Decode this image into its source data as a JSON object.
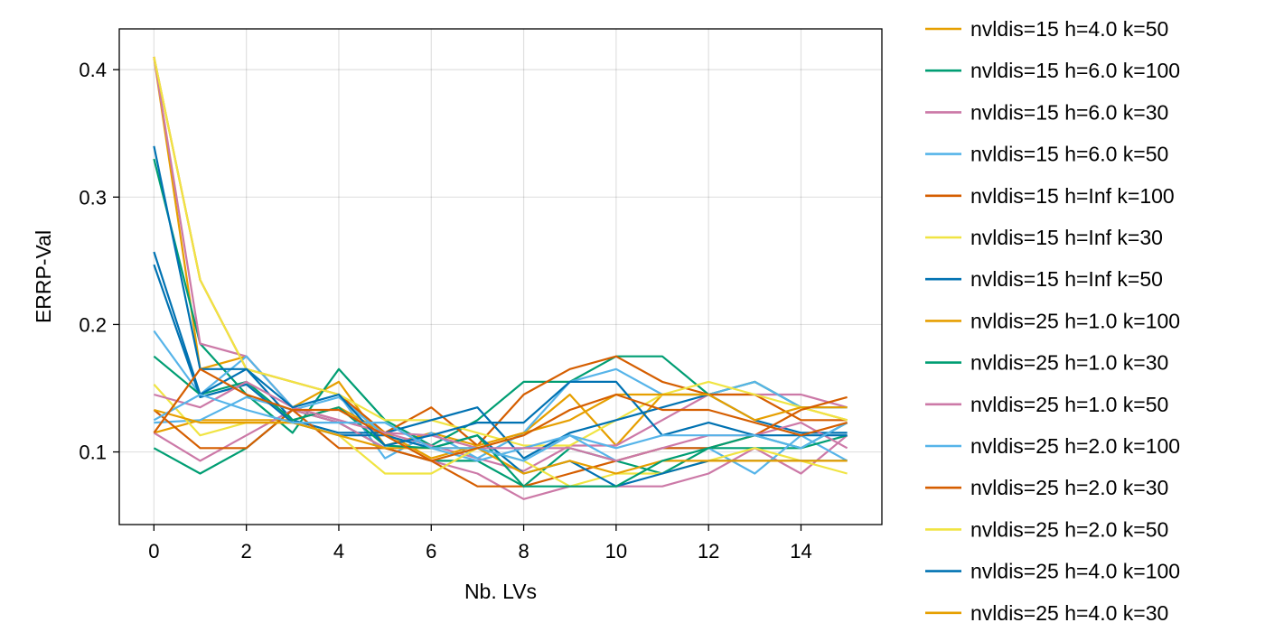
{
  "chart_data": {
    "type": "line",
    "title": "",
    "xlabel": "Nb. LVs",
    "ylabel": "ERRP-Val",
    "x": [
      0,
      1,
      2,
      3,
      4,
      5,
      6,
      7,
      8,
      9,
      10,
      11,
      12,
      13,
      14,
      15
    ],
    "xlim": [
      -0.75,
      15.75
    ],
    "ylim": [
      0.043,
      0.432
    ],
    "xticks": [
      0,
      2,
      4,
      6,
      8,
      10,
      12,
      14
    ],
    "yticks": [
      0.1,
      0.2,
      0.3,
      0.4
    ],
    "ytick_labels": [
      "0.1",
      "0.2",
      "0.3",
      "0.4"
    ],
    "grid": true,
    "legend_position": "outside-right",
    "series": [
      {
        "name": "nvldis=15 h=4.0 k=50",
        "color": "#E69F00",
        "values": [
          0.41,
          0.165,
          0.175,
          0.135,
          0.155,
          0.105,
          0.115,
          0.105,
          0.115,
          0.145,
          0.105,
          0.145,
          0.145,
          0.155,
          0.135,
          0.125
        ]
      },
      {
        "name": "nvldis=15 h=6.0 k=100",
        "color": "#009E73",
        "values": [
          0.33,
          0.185,
          0.145,
          0.115,
          0.165,
          0.125,
          0.105,
          0.125,
          0.155,
          0.155,
          0.175,
          0.175,
          0.145,
          0.155,
          0.135,
          0.135
        ]
      },
      {
        "name": "nvldis=15 h=6.0 k=30",
        "color": "#CC79A7",
        "values": [
          0.41,
          0.185,
          0.175,
          0.135,
          0.125,
          0.115,
          0.105,
          0.095,
          0.085,
          0.105,
          0.105,
          0.125,
          0.145,
          0.145,
          0.145,
          0.135
        ]
      },
      {
        "name": "nvldis=15 h=6.0 k=50",
        "color": "#56B4E9",
        "values": [
          0.195,
          0.145,
          0.175,
          0.135,
          0.145,
          0.095,
          0.115,
          0.095,
          0.115,
          0.155,
          0.165,
          0.145,
          0.145,
          0.155,
          0.135,
          0.135
        ]
      },
      {
        "name": "nvldis=15 h=Inf k=100",
        "color": "#D55E00",
        "values": [
          0.41,
          0.235,
          0.165,
          0.155,
          0.145,
          0.115,
          0.135,
          0.105,
          0.145,
          0.165,
          0.175,
          0.155,
          0.145,
          0.145,
          0.125,
          0.125
        ]
      },
      {
        "name": "nvldis=15 h=Inf k=30",
        "color": "#F0E442",
        "values": [
          0.41,
          0.235,
          0.165,
          0.155,
          0.145,
          0.125,
          0.125,
          0.115,
          0.105,
          0.105,
          0.125,
          0.145,
          0.155,
          0.145,
          0.135,
          0.125
        ]
      },
      {
        "name": "nvldis=15 h=Inf k=50",
        "color": "#0072B2",
        "values": [
          0.34,
          0.165,
          0.165,
          0.125,
          0.115,
          0.115,
          0.125,
          0.135,
          0.095,
          0.115,
          0.125,
          0.135,
          0.145,
          0.125,
          0.115,
          0.115
        ]
      },
      {
        "name": "nvldis=25 h=1.0 k=100",
        "color": "#E69F00",
        "values": [
          0.115,
          0.125,
          0.125,
          0.125,
          0.135,
          0.115,
          0.095,
          0.105,
          0.115,
          0.125,
          0.145,
          0.145,
          0.145,
          0.125,
          0.135,
          0.135
        ]
      },
      {
        "name": "nvldis=25 h=1.0 k=30",
        "color": "#009E73",
        "values": [
          0.103,
          0.083,
          0.103,
          0.133,
          0.123,
          0.103,
          0.093,
          0.093,
          0.073,
          0.103,
          0.093,
          0.083,
          0.103,
          0.103,
          0.103,
          0.123
        ]
      },
      {
        "name": "nvldis=25 h=1.0 k=50",
        "color": "#CC79A7",
        "values": [
          0.115,
          0.093,
          0.113,
          0.133,
          0.123,
          0.103,
          0.093,
          0.083,
          0.063,
          0.073,
          0.073,
          0.073,
          0.083,
          0.103,
          0.083,
          0.113
        ]
      },
      {
        "name": "nvldis=25 h=2.0 k=100",
        "color": "#56B4E9",
        "values": [
          0.123,
          0.125,
          0.143,
          0.133,
          0.143,
          0.113,
          0.103,
          0.093,
          0.103,
          0.113,
          0.093,
          0.103,
          0.103,
          0.083,
          0.113,
          0.093
        ]
      },
      {
        "name": "nvldis=25 h=2.0 k=30",
        "color": "#D55E00",
        "values": [
          0.133,
          0.103,
          0.103,
          0.133,
          0.103,
          0.103,
          0.093,
          0.073,
          0.073,
          0.083,
          0.093,
          0.103,
          0.103,
          0.113,
          0.133,
          0.143
        ]
      },
      {
        "name": "nvldis=25 h=2.0 k=50",
        "color": "#F0E442",
        "values": [
          0.153,
          0.113,
          0.123,
          0.123,
          0.113,
          0.083,
          0.083,
          0.103,
          0.093,
          0.073,
          0.083,
          0.083,
          0.093,
          0.103,
          0.093,
          0.083
        ]
      },
      {
        "name": "nvldis=25 h=4.0 k=100",
        "color": "#0072B2",
        "values": [
          0.247,
          0.143,
          0.153,
          0.123,
          0.113,
          0.113,
          0.103,
          0.113,
          0.083,
          0.093,
          0.073,
          0.083,
          0.093,
          0.093,
          0.093,
          0.093
        ]
      },
      {
        "name": "nvldis=25 h=4.0 k=30",
        "color": "#E69F00",
        "values": [
          0.133,
          0.123,
          0.123,
          0.123,
          0.113,
          0.103,
          0.103,
          0.103,
          0.083,
          0.093,
          0.083,
          0.093,
          0.093,
          0.093,
          0.093,
          0.093
        ]
      },
      {
        "name": "",
        "color": "#009E73",
        "in_legend": false,
        "values": [
          0.175,
          0.145,
          0.155,
          0.125,
          0.135,
          0.105,
          0.103,
          0.113,
          0.073,
          0.073,
          0.073,
          0.093,
          0.103,
          0.113,
          0.103,
          0.113
        ]
      },
      {
        "name": "",
        "color": "#CC79A7",
        "in_legend": false,
        "values": [
          0.145,
          0.135,
          0.155,
          0.135,
          0.125,
          0.115,
          0.113,
          0.103,
          0.103,
          0.103,
          0.093,
          0.103,
          0.113,
          0.113,
          0.123,
          0.103
        ]
      },
      {
        "name": "",
        "color": "#0072B2",
        "in_legend": false,
        "values": [
          0.257,
          0.145,
          0.165,
          0.135,
          0.145,
          0.105,
          0.113,
          0.123,
          0.123,
          0.155,
          0.155,
          0.113,
          0.123,
          0.113,
          0.113,
          0.113
        ]
      },
      {
        "name": "",
        "color": "#56B4E9",
        "in_legend": false,
        "values": [
          0.125,
          0.145,
          0.133,
          0.123,
          0.123,
          0.123,
          0.103,
          0.103,
          0.093,
          0.113,
          0.103,
          0.113,
          0.113,
          0.113,
          0.103,
          0.123
        ]
      },
      {
        "name": "",
        "color": "#D55E00",
        "in_legend": false,
        "values": [
          0.115,
          0.165,
          0.145,
          0.133,
          0.133,
          0.113,
          0.093,
          0.103,
          0.113,
          0.133,
          0.145,
          0.133,
          0.133,
          0.123,
          0.113,
          0.123
        ]
      }
    ]
  }
}
